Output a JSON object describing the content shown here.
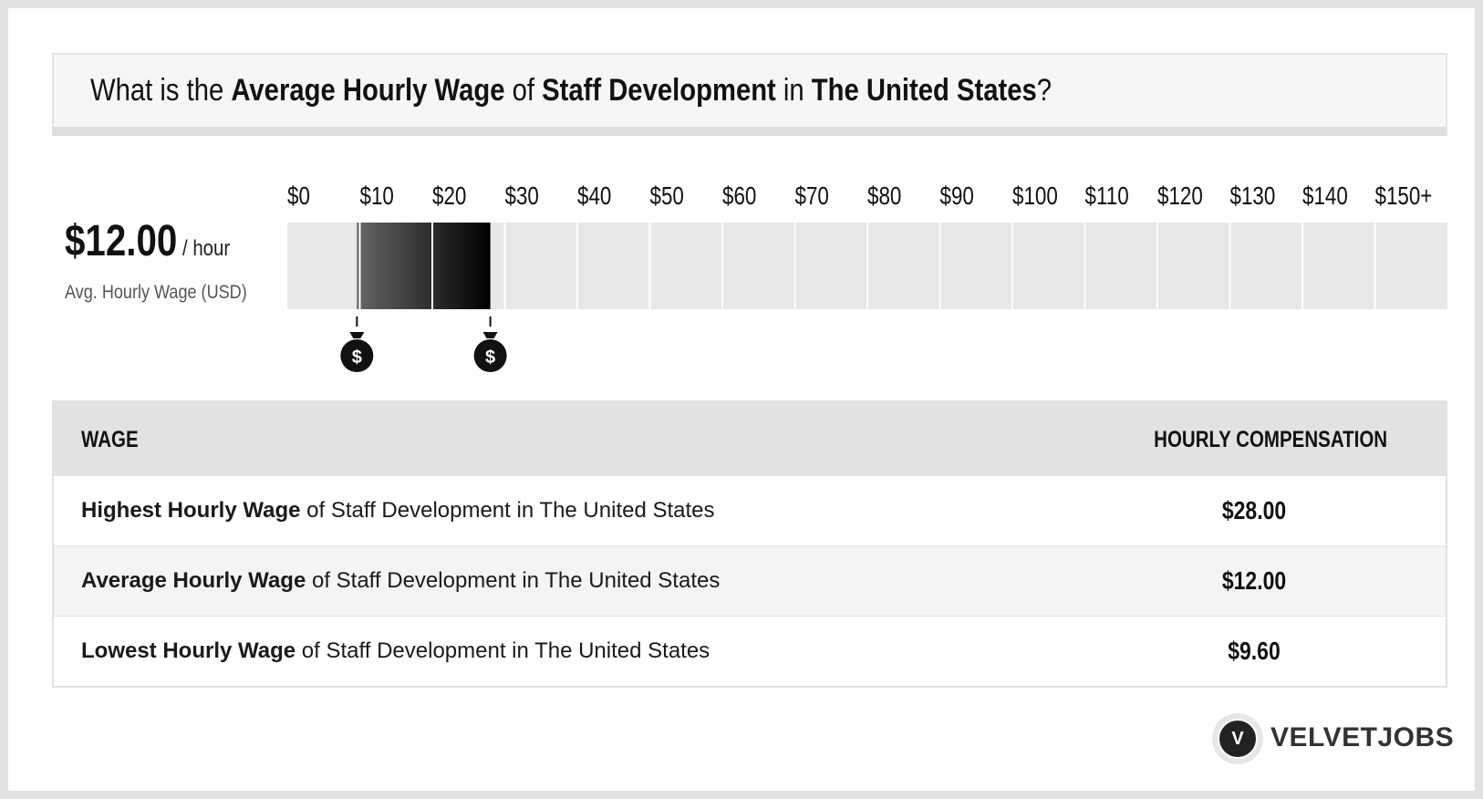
{
  "title": {
    "p1": "What is the ",
    "b1": "Average Hourly Wage",
    "p2": " of ",
    "b2": "Staff Development",
    "p3": " in ",
    "b3": "The United States",
    "p4": "?"
  },
  "summary": {
    "amount": "$12.00",
    "unit": "/ hour",
    "label": "Avg. Hourly Wage (USD)"
  },
  "chart_data": {
    "type": "bar",
    "tick_labels": [
      "$0",
      "$10",
      "$20",
      "$30",
      "$40",
      "$50",
      "$60",
      "$70",
      "$80",
      "$90",
      "$100",
      "$110",
      "$120",
      "$130",
      "$140",
      "$150+"
    ],
    "xlim": [
      0,
      160
    ],
    "range": {
      "low": 9.6,
      "average": 12.0,
      "high": 28.0
    },
    "markers": [
      {
        "value": 9.6,
        "icon": "money-bag-icon",
        "symbol": "$"
      },
      {
        "value": 28.0,
        "icon": "money-bag-icon",
        "symbol": "$"
      }
    ],
    "colors": {
      "track": "#e8e8e8",
      "range_start": "#666666",
      "range_end": "#000000"
    }
  },
  "table": {
    "headers": {
      "wage": "WAGE",
      "comp": "HOURLY COMPENSATION"
    },
    "rows": [
      {
        "bold": "Highest Hourly Wage",
        "rest": " of Staff Development in The United States",
        "value": "$28.00"
      },
      {
        "bold": "Average Hourly Wage",
        "rest": " of Staff Development in The United States",
        "value": "$12.00"
      },
      {
        "bold": "Lowest Hourly Wage",
        "rest": " of Staff Development in The United States",
        "value": "$9.60"
      }
    ]
  },
  "logo": {
    "letter": "V",
    "text": "VELVETJOBS"
  }
}
